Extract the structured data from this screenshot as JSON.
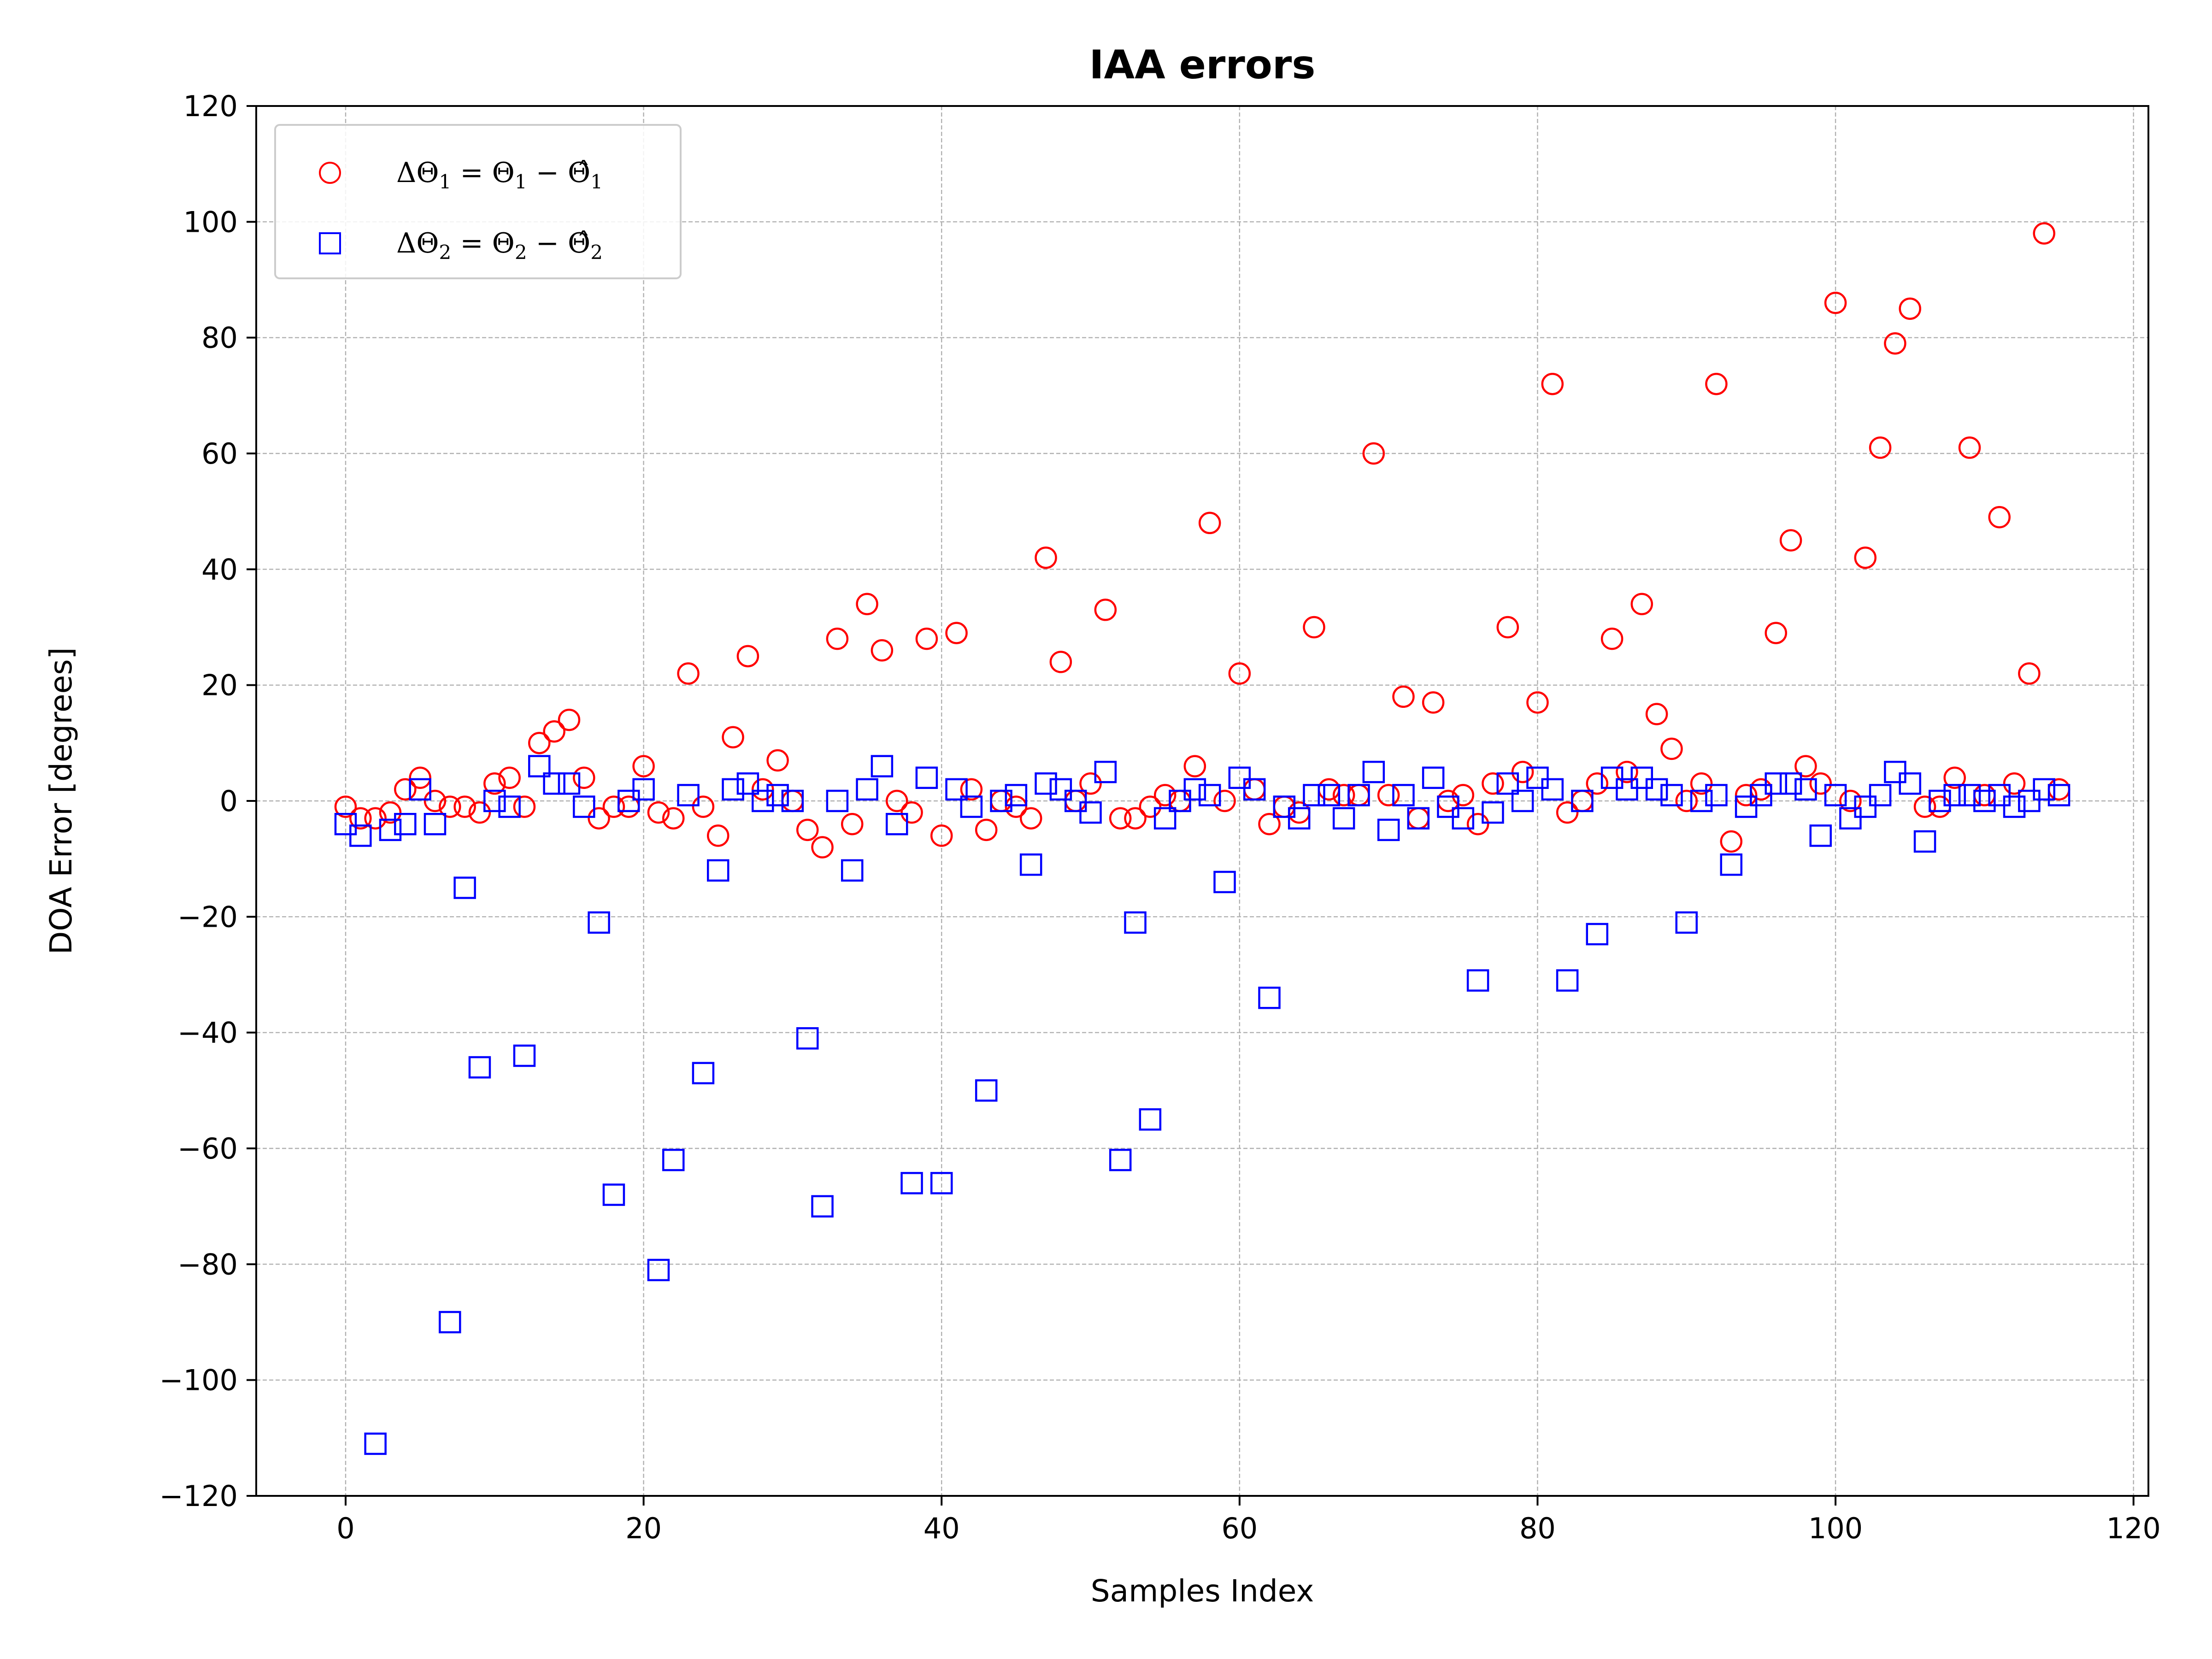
{
  "chart_data": {
    "type": "scatter",
    "title": "IAA errors",
    "xlabel": "Samples Index",
    "ylabel": "DOA Error [degrees]",
    "xlim": [
      -6,
      121
    ],
    "ylim": [
      -120,
      120
    ],
    "xticks": [
      0,
      20,
      40,
      60,
      80,
      100,
      120
    ],
    "xtick_labels": [
      "0",
      "20",
      "40",
      "60",
      "80",
      "100",
      "120"
    ],
    "yticks": [
      -120,
      -100,
      -80,
      -60,
      -40,
      -20,
      0,
      20,
      40,
      60,
      80,
      100,
      120
    ],
    "ytick_labels": [
      "−120",
      "−100",
      "−80",
      "−60",
      "−40",
      "−20",
      "0",
      "20",
      "40",
      "60",
      "80",
      "100",
      "120"
    ],
    "grid": true,
    "legend_position": "top-left",
    "series": [
      {
        "name": "ΔΘ₁ = Θ₁ − Θ̂₁",
        "legend": {
          "a": "ΔΘ",
          "b": "1",
          "c": " = Θ",
          "d": "1",
          "e": " − ",
          "f": "Θ̂",
          "g": "1"
        },
        "color": "#ff0000",
        "marker": "circle",
        "x": [
          0,
          1,
          2,
          3,
          4,
          5,
          6,
          7,
          8,
          9,
          10,
          11,
          12,
          13,
          14,
          15,
          16,
          17,
          18,
          19,
          20,
          21,
          22,
          23,
          24,
          25,
          26,
          27,
          28,
          29,
          30,
          31,
          32,
          33,
          34,
          35,
          36,
          37,
          38,
          39,
          40,
          41,
          42,
          43,
          44,
          45,
          46,
          47,
          48,
          49,
          50,
          51,
          52,
          53,
          54,
          55,
          56,
          57,
          58,
          59,
          60,
          61,
          62,
          63,
          64,
          65,
          66,
          67,
          68,
          69,
          70,
          71,
          72,
          73,
          74,
          75,
          76,
          77,
          78,
          79,
          80,
          81,
          82,
          83,
          84,
          85,
          86,
          87,
          88,
          89,
          90,
          91,
          92,
          93,
          94,
          95,
          96,
          97,
          98,
          99,
          100,
          101,
          102,
          103,
          104,
          105,
          106,
          107,
          108,
          109,
          110,
          111,
          112,
          113,
          114,
          115
        ],
        "y": [
          -1,
          -3,
          -3,
          -2,
          2,
          4,
          0,
          -1,
          -1,
          -2,
          3,
          4,
          -1,
          10,
          12,
          14,
          4,
          -3,
          -1,
          -1,
          6,
          -2,
          -3,
          22,
          -1,
          -6,
          11,
          25,
          2,
          7,
          0,
          -5,
          -8,
          28,
          -4,
          34,
          26,
          0,
          -2,
          28,
          -6,
          29,
          2,
          -5,
          0,
          -1,
          -3,
          42,
          24,
          0,
          3,
          33,
          -3,
          -3,
          -1,
          1,
          0,
          6,
          48,
          0,
          22,
          2,
          -4,
          -1,
          -2,
          30,
          2,
          1,
          1,
          60,
          1,
          18,
          -3,
          17,
          0,
          1,
          -4,
          3,
          30,
          5,
          17,
          72,
          -2,
          0,
          3,
          28,
          5,
          34,
          15,
          9,
          0,
          3,
          72,
          -7,
          1,
          2,
          29,
          45,
          6,
          3,
          86,
          0,
          42,
          61,
          79,
          85,
          -1,
          -1,
          4,
          61,
          1,
          49,
          3,
          22,
          98,
          2
        ]
      },
      {
        "name": "ΔΘ₂ = Θ₂ − Θ̂₂",
        "legend": {
          "a": "ΔΘ",
          "b": "2",
          "c": " = Θ",
          "d": "2",
          "e": " − ",
          "f": "Θ̂",
          "g": "2"
        },
        "color": "#0000ff",
        "marker": "square",
        "x": [
          0,
          1,
          2,
          3,
          4,
          5,
          6,
          7,
          8,
          9,
          10,
          11,
          12,
          13,
          14,
          15,
          16,
          17,
          18,
          19,
          20,
          21,
          22,
          23,
          24,
          25,
          26,
          27,
          28,
          29,
          30,
          31,
          32,
          33,
          34,
          35,
          36,
          37,
          38,
          39,
          40,
          41,
          42,
          43,
          44,
          45,
          46,
          47,
          48,
          49,
          50,
          51,
          52,
          53,
          54,
          55,
          56,
          57,
          58,
          59,
          60,
          61,
          62,
          63,
          64,
          65,
          66,
          67,
          68,
          69,
          70,
          71,
          72,
          73,
          74,
          75,
          76,
          77,
          78,
          79,
          80,
          81,
          82,
          83,
          84,
          85,
          86,
          87,
          88,
          89,
          90,
          91,
          92,
          93,
          94,
          95,
          96,
          97,
          98,
          99,
          100,
          101,
          102,
          103,
          104,
          105,
          106,
          107,
          108,
          109,
          110,
          111,
          112,
          113,
          114,
          115
        ],
        "y": [
          -4,
          -6,
          -111,
          -5,
          -4,
          2,
          -4,
          -90,
          -15,
          -46,
          0,
          -1,
          -44,
          6,
          3,
          3,
          -1,
          -21,
          -68,
          0,
          2,
          -81,
          -62,
          1,
          -47,
          -12,
          2,
          3,
          0,
          1,
          0,
          -41,
          -70,
          0,
          -12,
          2,
          6,
          -4,
          -66,
          4,
          -66,
          2,
          -1,
          -50,
          0,
          1,
          -11,
          3,
          2,
          0,
          -2,
          5,
          -62,
          -21,
          -55,
          -3,
          0,
          2,
          1,
          -14,
          4,
          2,
          -34,
          -1,
          -3,
          1,
          1,
          -3,
          1,
          5,
          -5,
          1,
          -3,
          4,
          -1,
          -3,
          -31,
          -2,
          3,
          0,
          4,
          2,
          -31,
          0,
          -23,
          4,
          2,
          4,
          2,
          1,
          -21,
          0,
          1,
          -11,
          -1,
          1,
          3,
          3,
          2,
          -6,
          1,
          -3,
          -1,
          1,
          5,
          3,
          -7,
          0,
          1,
          1,
          0,
          1,
          -1,
          0,
          2,
          1
        ]
      }
    ]
  }
}
